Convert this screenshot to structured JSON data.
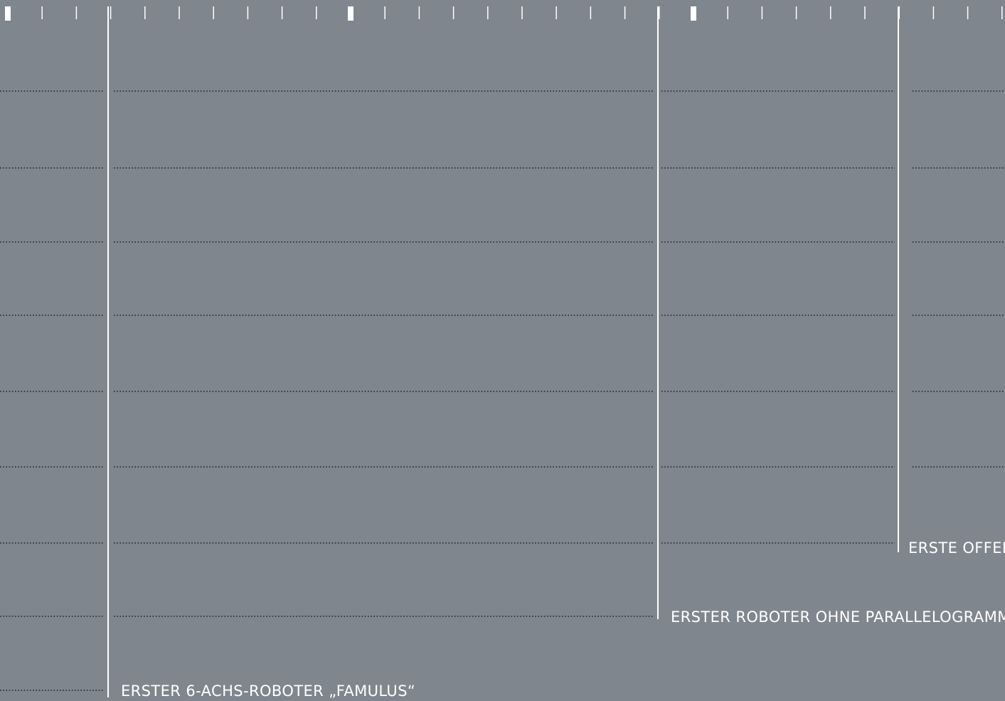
{
  "colors": {
    "background": "#80868e",
    "lines": "#ffffff",
    "dots": "#1e232a"
  },
  "milestones": [
    {
      "label": "ERSTER 6-ACHS-ROBOTER „FAMULUS“"
    },
    {
      "label": "ERSTER ROBOTER OHNE PARALLELOGRAMM"
    },
    {
      "label": "ERSTE OFFEN"
    }
  ]
}
